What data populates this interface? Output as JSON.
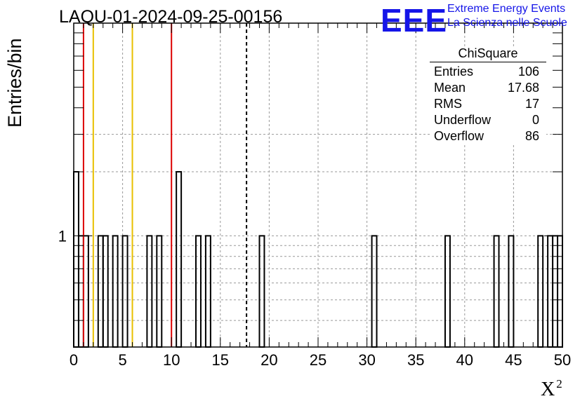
{
  "header": {
    "title": "LAQU-01-2024-09-25-00156",
    "logo_text": "EEE",
    "org_line1": "Extreme Energy Events",
    "org_line2": "La Scienza nelle Scuole"
  },
  "colors": {
    "brand": "#1515e8",
    "red_marker": "#dd0000",
    "yellow_marker": "#e8c000",
    "histogram": "#000000",
    "grid": "#999999"
  },
  "stats": {
    "name": "ChiSquare",
    "rows": [
      {
        "label": "Entries",
        "value": "106"
      },
      {
        "label": "Mean",
        "value": "17.68"
      },
      {
        "label": "RMS",
        "value": "17"
      },
      {
        "label": "Underflow",
        "value": "0"
      },
      {
        "label": "Overflow",
        "value": "86"
      }
    ]
  },
  "chart_data": {
    "type": "bar",
    "subtype": "histogram",
    "title": "LAQU-01-2024-09-25-00156",
    "xlabel": "X",
    "xlabel_superscript": "2",
    "ylabel": "Entries/bin",
    "xlim": [
      0,
      50
    ],
    "ylim_log": [
      0.3,
      10
    ],
    "log_y": true,
    "grid": true,
    "bin_width": 0.5,
    "x_ticks": [
      "0",
      "5",
      "10",
      "15",
      "20",
      "25",
      "30",
      "35",
      "40",
      "45",
      "50"
    ],
    "y_ticks": [
      "1"
    ],
    "bins": [
      {
        "x": 0.0,
        "count": 2
      },
      {
        "x": 0.5,
        "count": 1
      },
      {
        "x": 1.0,
        "count": 1
      },
      {
        "x": 2.5,
        "count": 1
      },
      {
        "x": 3.0,
        "count": 1
      },
      {
        "x": 4.0,
        "count": 1
      },
      {
        "x": 5.0,
        "count": 1
      },
      {
        "x": 7.5,
        "count": 1
      },
      {
        "x": 8.5,
        "count": 1
      },
      {
        "x": 10.5,
        "count": 2
      },
      {
        "x": 12.5,
        "count": 1
      },
      {
        "x": 13.5,
        "count": 1
      },
      {
        "x": 19.0,
        "count": 1
      },
      {
        "x": 30.5,
        "count": 1
      },
      {
        "x": 38.0,
        "count": 1
      },
      {
        "x": 43.0,
        "count": 1
      },
      {
        "x": 44.5,
        "count": 1
      },
      {
        "x": 47.5,
        "count": 1
      },
      {
        "x": 48.5,
        "count": 1
      },
      {
        "x": 49.0,
        "count": 1
      },
      {
        "x": 49.5,
        "count": 1
      }
    ],
    "markers": [
      {
        "x": 1.0,
        "color": "red"
      },
      {
        "x": 2.0,
        "color": "yellow"
      },
      {
        "x": 6.0,
        "color": "yellow"
      },
      {
        "x": 10.0,
        "color": "red"
      },
      {
        "x": 17.68,
        "color": "black",
        "style": "dashed"
      }
    ]
  }
}
